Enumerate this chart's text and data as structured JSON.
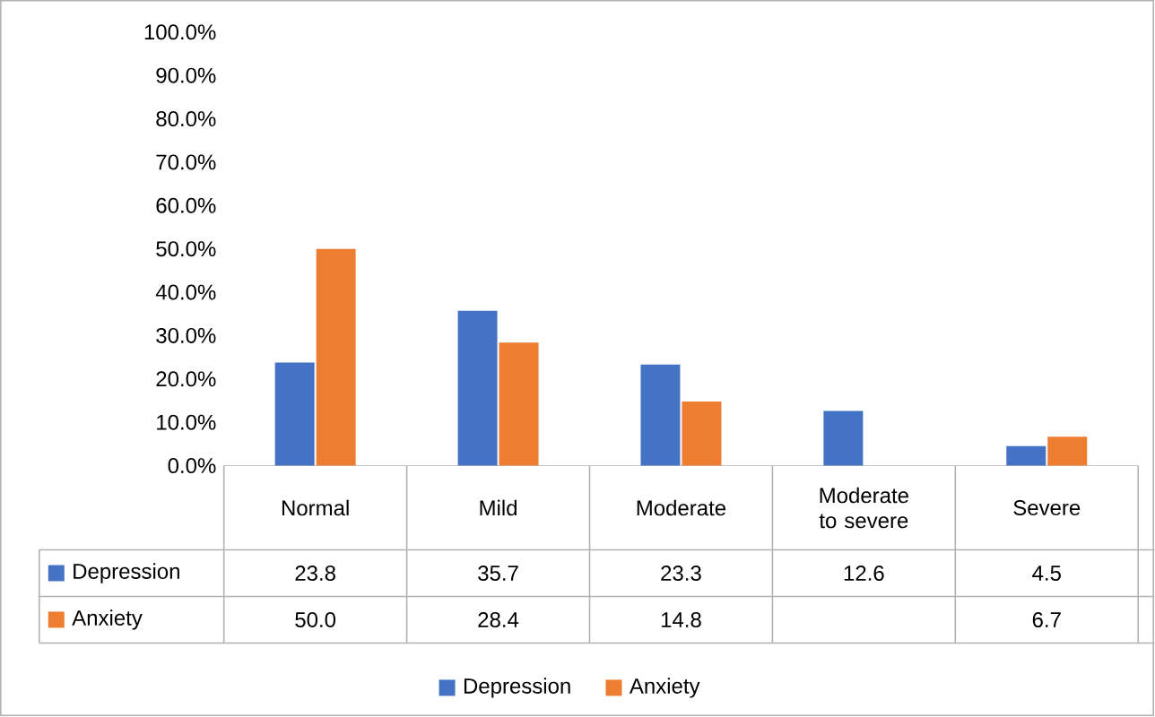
{
  "chart_data": {
    "type": "bar",
    "categories": [
      "Normal",
      "Mild",
      "Moderate",
      "Moderate to severe",
      "Severe"
    ],
    "series": [
      {
        "name": "Depression",
        "color": "#4472c4",
        "values": [
          23.8,
          35.7,
          23.3,
          12.6,
          4.5
        ],
        "value_labels": [
          "23.8",
          "35.7",
          "23.3",
          "12.6",
          "4.5"
        ]
      },
      {
        "name": "Anxiety",
        "color": "#ed7d31",
        "values": [
          50.0,
          28.4,
          14.8,
          null,
          6.7
        ],
        "value_labels": [
          "50.0",
          "28.4",
          "14.8",
          null,
          "6.7"
        ]
      }
    ],
    "ylim": [
      0,
      100
    ],
    "yticks": [
      {
        "value": 0,
        "label": "0.0%"
      },
      {
        "value": 10,
        "label": "10.0%"
      },
      {
        "value": 20,
        "label": "20.0%"
      },
      {
        "value": 30,
        "label": "30.0%"
      },
      {
        "value": 40,
        "label": "40.0%"
      },
      {
        "value": 50,
        "label": "50.0%"
      },
      {
        "value": 60,
        "label": "60.0%"
      },
      {
        "value": 70,
        "label": "70.0%"
      },
      {
        "value": 80,
        "label": "80.0%"
      },
      {
        "value": 90,
        "label": "90.0%"
      },
      {
        "value": 100,
        "label": "100.0%"
      }
    ],
    "legend": "bottom"
  }
}
